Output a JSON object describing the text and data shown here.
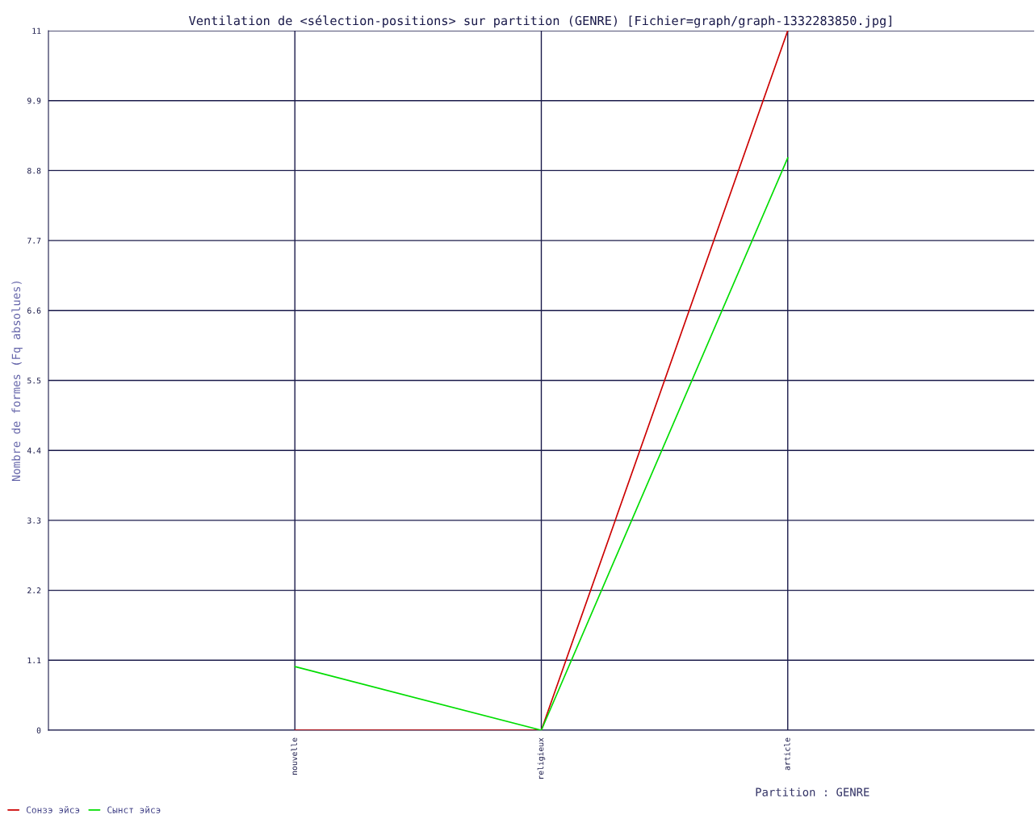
{
  "chart_data": {
    "type": "line",
    "title": "Ventilation de <sélection-positions> sur partition (GENRE) [Fichier=graph/graph-1332283850.jpg]",
    "xlabel": "Partition : GENRE",
    "ylabel": "Nombre de formes (Fq absolues)",
    "categories": [
      "nouvelle",
      "religieux",
      "article"
    ],
    "series": [
      {
        "name": "Сонзэ эйсэ",
        "color": "#cc0000",
        "values": [
          0,
          0,
          11
        ]
      },
      {
        "name": "Сынст эйсэ",
        "color": "#00dd00",
        "values": [
          1,
          0,
          9
        ]
      }
    ],
    "ylim": [
      0,
      11
    ],
    "yticks": [
      0,
      1.1,
      2.2,
      3.3,
      4.4,
      5.5,
      6.6,
      7.7,
      8.8,
      9.9,
      11
    ],
    "grid": true,
    "legend": "bottom left",
    "marker": "none",
    "line_style": "solid"
  }
}
